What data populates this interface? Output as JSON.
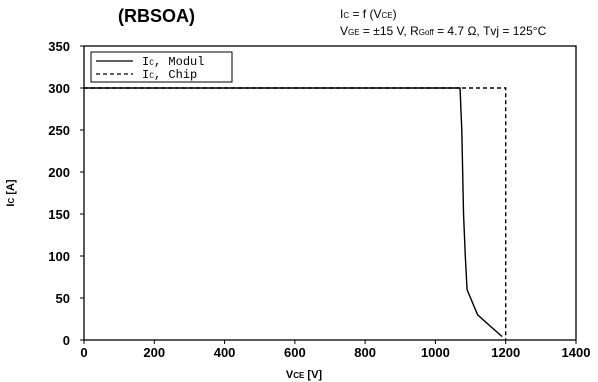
{
  "colors": {
    "line": "#000000",
    "background": "#ffffff"
  },
  "chart_data": {
    "type": "line",
    "title": "(RBSOA)",
    "conditions": {
      "function_line": {
        "a": "I",
        "a_sub": "C",
        "b": " = f (V",
        "b_sub": "CE",
        "c": ")"
      },
      "params_line": {
        "a": "V",
        "a_sub": "GE",
        "b": " = ±15 V, R",
        "b_sub": "Goff",
        "c": " = 4.7 Ω, Tvj = 125°C"
      }
    },
    "xlabel": {
      "main": "V",
      "sub": "CE",
      "unit": " [V]"
    },
    "ylabel": {
      "main": "I",
      "sub": "C",
      "unit": " [A]"
    },
    "xlim": [
      0,
      1400
    ],
    "ylim": [
      0,
      350
    ],
    "xticks": [
      "0",
      "200",
      "400",
      "600",
      "800",
      "1000",
      "1200",
      "1400"
    ],
    "yticks": [
      "0",
      "50",
      "100",
      "150",
      "200",
      "250",
      "300",
      "350"
    ],
    "grid": false,
    "legend_position": "top-left",
    "series": [
      {
        "name": {
          "main": "I",
          "sub": "C",
          "rest": ", Modul"
        },
        "style": "solid",
        "points": [
          [
            0,
            300
          ],
          [
            1070,
            300
          ],
          [
            1075,
            250
          ],
          [
            1080,
            150
          ],
          [
            1085,
            100
          ],
          [
            1090,
            60
          ],
          [
            1120,
            30
          ],
          [
            1160,
            15
          ],
          [
            1190,
            4
          ]
        ]
      },
      {
        "name": {
          "main": "I",
          "sub": "C",
          "rest": ", Chip"
        },
        "style": "dashed",
        "points": [
          [
            0,
            300
          ],
          [
            1200,
            300
          ],
          [
            1200,
            0
          ]
        ]
      }
    ]
  }
}
